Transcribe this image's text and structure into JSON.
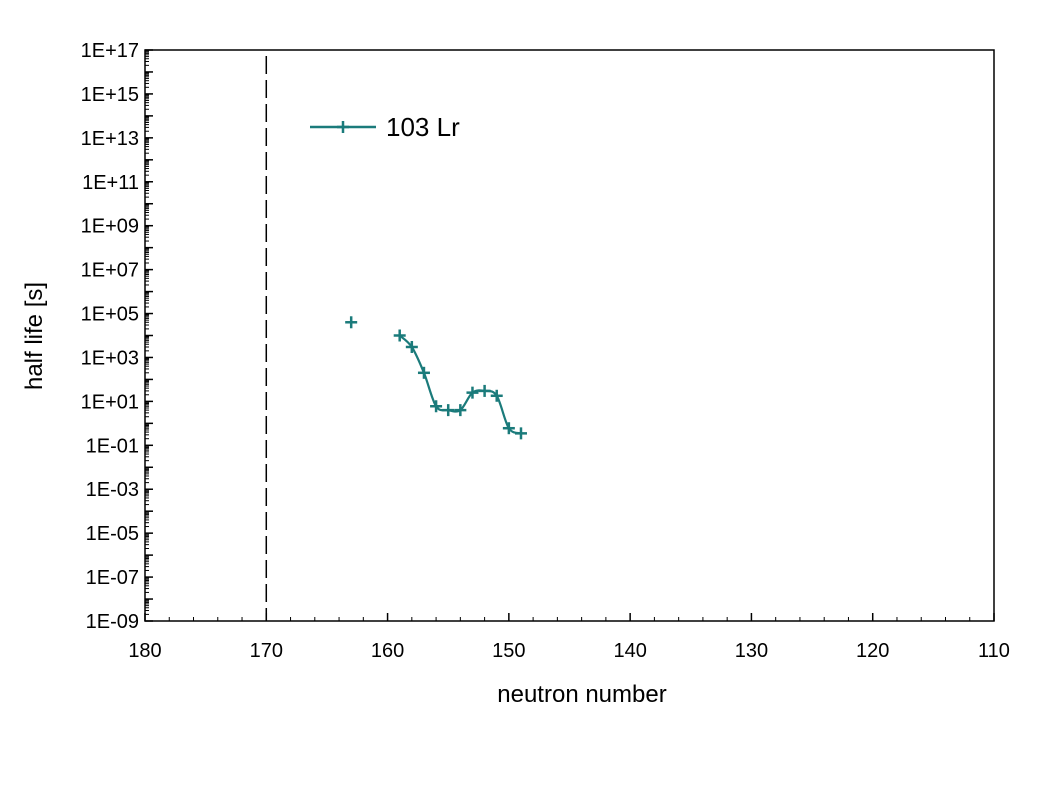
{
  "chart_data": {
    "type": "line",
    "xlabel": "neutron number",
    "ylabel": "half life [s]",
    "xlim": [
      180,
      110
    ],
    "x_reversed": true,
    "x_ticks": [
      180,
      170,
      160,
      150,
      140,
      130,
      120,
      110
    ],
    "y_scale": "log",
    "ylim": [
      1e-09,
      1e+17
    ],
    "y_tick_labels": [
      "1E-09",
      "1E-07",
      "1E-05",
      "1E-03",
      "1E-01",
      "1E+01",
      "1E+03",
      "1E+05",
      "1E+07",
      "1E+09",
      "1E+11",
      "1E+13",
      "1E+15",
      "1E+17"
    ],
    "reference_line": {
      "x": 170,
      "style": "dashed"
    },
    "legend": {
      "placement": "top-left"
    },
    "grid": false,
    "series": [
      {
        "name": "103 Lr",
        "color": "#1b7b7b",
        "marker": "plus",
        "connected_points": [
          {
            "x": 159,
            "y": 10000
          },
          {
            "x": 158,
            "y": 3000
          },
          {
            "x": 157,
            "y": 200
          },
          {
            "x": 156,
            "y": 6
          },
          {
            "x": 155,
            "y": 4
          },
          {
            "x": 154,
            "y": 4
          },
          {
            "x": 153,
            "y": 25
          },
          {
            "x": 152,
            "y": 30
          },
          {
            "x": 151,
            "y": 18
          },
          {
            "x": 150,
            "y": 0.6
          },
          {
            "x": 149,
            "y": 0.35
          }
        ],
        "isolated_points": [
          {
            "x": 163,
            "y": 40000
          }
        ]
      }
    ]
  }
}
